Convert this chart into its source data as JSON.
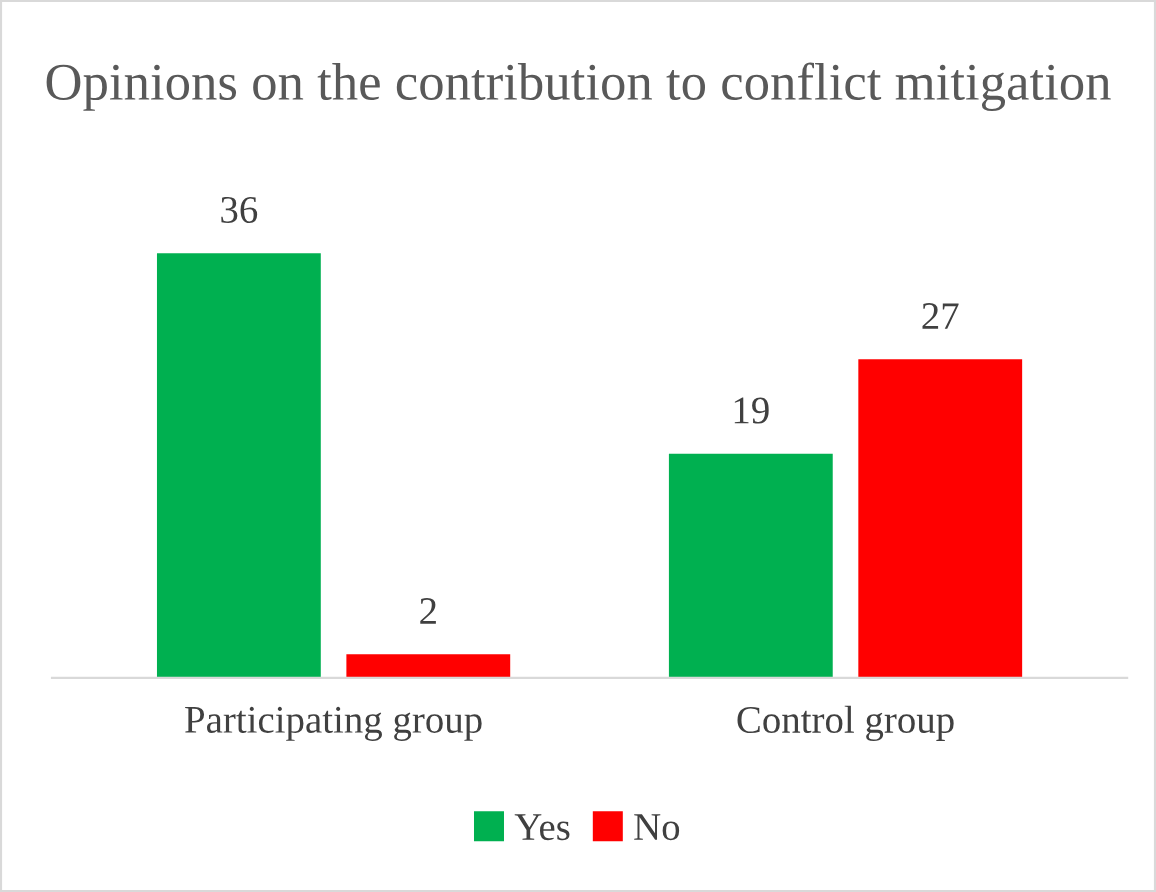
{
  "chart_data": {
    "type": "bar",
    "title": "Opinions on the contribution to conflict mitigation",
    "categories": [
      "Participating group",
      "Control group"
    ],
    "series": [
      {
        "name": "Yes",
        "color": "#00b050",
        "values": [
          36,
          19
        ]
      },
      {
        "name": "No",
        "color": "#ff0000",
        "values": [
          2,
          27
        ]
      }
    ],
    "data_labels": true,
    "legend": "bottom",
    "grid": false
  }
}
